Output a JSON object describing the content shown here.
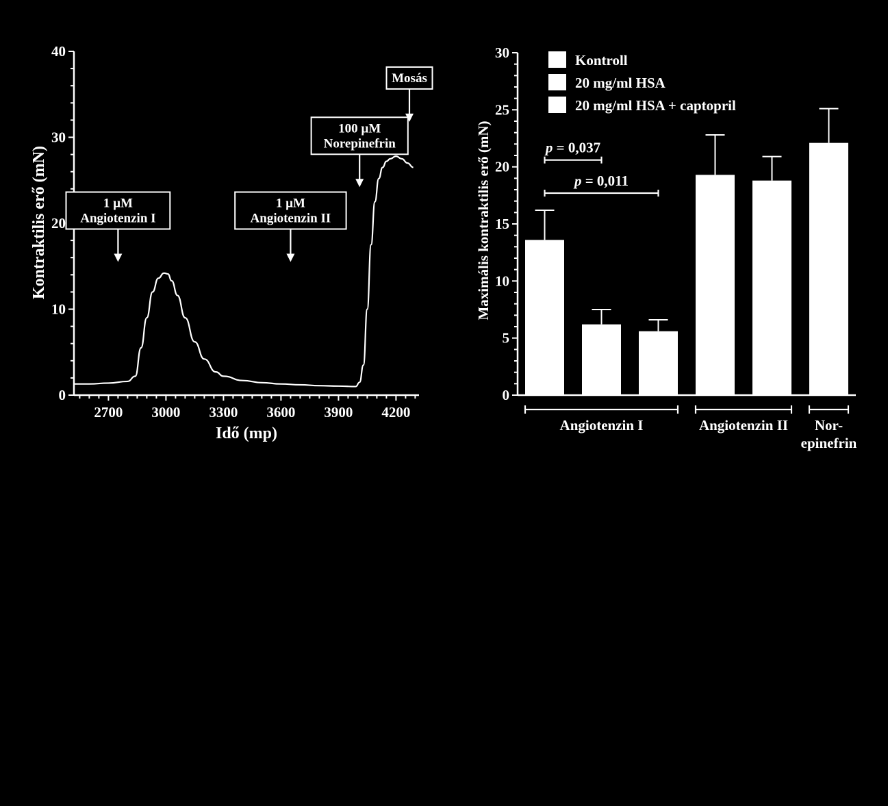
{
  "chart_data": [
    {
      "type": "line",
      "xlabel": "Idő (mp)",
      "ylabel": "Kontraktilis erő (mN)",
      "xlim": [
        2520,
        4320
      ],
      "ylim": [
        0,
        40
      ],
      "xticks": [
        2700,
        3000,
        3300,
        3600,
        3900,
        4200
      ],
      "yticks": [
        0,
        10,
        20,
        30,
        40
      ],
      "series": [
        {
          "x": [
            2520,
            2600,
            2700,
            2800,
            2840,
            2870,
            2900,
            2930,
            2960,
            2990,
            3010,
            3030,
            3060,
            3100,
            3150,
            3200,
            3260,
            3300,
            3400,
            3500,
            3600,
            3700,
            3800,
            3900,
            3990,
            4010,
            4030,
            4050,
            4070,
            4090,
            4110,
            4130,
            4150,
            4170,
            4200,
            4230,
            4260,
            4290
          ],
          "values": [
            1.3,
            1.3,
            1.4,
            1.6,
            2.2,
            5.5,
            9.0,
            12.0,
            13.6,
            14.2,
            14.1,
            13.3,
            11.6,
            9.0,
            6.2,
            4.2,
            2.7,
            2.2,
            1.7,
            1.45,
            1.3,
            1.2,
            1.1,
            1.05,
            1.0,
            1.5,
            3.5,
            10.0,
            17.5,
            22.5,
            25.2,
            26.5,
            27.2,
            27.5,
            27.8,
            27.5,
            27.0,
            26.5
          ]
        }
      ],
      "annotations": [
        {
          "lines": [
            "1 µM",
            "Angiotenzin I"
          ],
          "x": 2750,
          "y": 15.5
        },
        {
          "lines": [
            "1 µM",
            "Angiotenzin II"
          ],
          "x": 3650,
          "y": 15.5
        },
        {
          "lines": [
            "100 µM",
            "Norepinefrin"
          ],
          "x": 4010,
          "y": 24.2
        },
        {
          "lines": [
            "Mosás"
          ],
          "x": 4270,
          "y": 31.8
        }
      ]
    },
    {
      "type": "bar",
      "ylabel": "Maximális kontraktilis erő (mN)",
      "ylim": [
        0,
        30
      ],
      "yticks": [
        0,
        5,
        10,
        15,
        20,
        25,
        30
      ],
      "legend": [
        "Kontroll",
        "20 mg/ml HSA",
        "20 mg/ml HSA + captopril"
      ],
      "groups": [
        {
          "label": [
            "Angiotenzin I"
          ],
          "values": [
            13.6,
            6.2,
            5.6
          ],
          "errors": [
            2.6,
            1.3,
            1.0
          ]
        },
        {
          "label": [
            "Angiotenzin II"
          ],
          "values": [
            19.3,
            18.8
          ],
          "errors": [
            3.5,
            2.1
          ]
        },
        {
          "label": [
            "Nor-",
            "epinefrin"
          ],
          "values": [
            22.1
          ],
          "errors": [
            3.0
          ]
        }
      ],
      "significance": [
        {
          "p_label": "p",
          "text": " = 0,037",
          "from_bar": 0,
          "to_bar": 1,
          "y": 20.6
        },
        {
          "p_label": "p",
          "text": " = 0,011",
          "from_bar": 0,
          "to_bar": 2,
          "y": 17.7
        }
      ]
    }
  ]
}
